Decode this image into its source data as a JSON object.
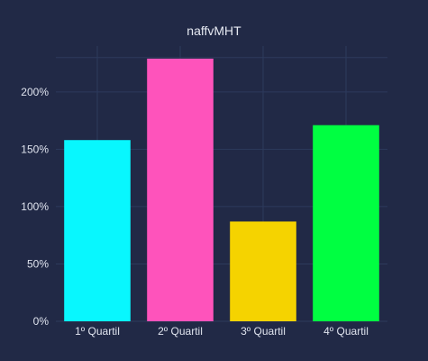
{
  "chart_data": {
    "type": "bar",
    "title": "naffvMHT",
    "categories": [
      "1º Quartil",
      "2º Quartil",
      "3º Quartil",
      "4º Quartil"
    ],
    "values": [
      158,
      229,
      87,
      171
    ],
    "unit": "%",
    "ylim": [
      0,
      240
    ],
    "yticks": [
      0,
      50,
      100,
      150,
      200
    ],
    "ytick_labels": [
      "0%",
      "50%",
      "100%",
      "150%",
      "200%"
    ],
    "xlabel": "",
    "ylabel": "",
    "grid": true,
    "legend": "none",
    "colors": [
      "#08F7FE",
      "#FE53BB",
      "#F5D300",
      "#00FF41"
    ],
    "background": "#212946",
    "grid_color": "#2d3a5c"
  }
}
